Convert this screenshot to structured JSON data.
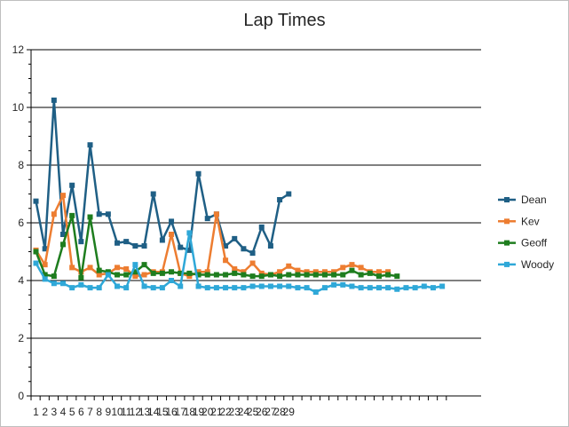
{
  "chart_data": {
    "type": "line",
    "title": "Lap Times",
    "xlabel": "",
    "ylabel": "",
    "ylim": [
      0,
      12
    ],
    "yticks": [
      0,
      2,
      4,
      6,
      8,
      10,
      12
    ],
    "grid": "horizontal",
    "legend_position": "right",
    "x_tick_labels": [
      "1",
      "2",
      "3",
      "4",
      "5",
      "6",
      "7",
      "8",
      "9",
      "10",
      "11",
      "12",
      "13",
      "14",
      "15",
      "16",
      "17",
      "18",
      "19",
      "20",
      "21",
      "22",
      "23",
      "24",
      "25",
      "26",
      "27",
      "28",
      "29"
    ],
    "series": [
      {
        "name": "Dean",
        "color": "#1f5f85",
        "values": [
          6.75,
          5.1,
          10.25,
          5.6,
          7.3,
          5.35,
          8.7,
          6.3,
          6.3,
          5.3,
          5.35,
          5.2,
          5.2,
          7.0,
          5.4,
          6.05,
          5.15,
          5.05,
          7.7,
          6.15,
          6.3,
          5.2,
          5.45,
          5.1,
          4.95,
          5.85,
          5.2,
          6.8,
          7.0
        ]
      },
      {
        "name": "Kev",
        "color": "#ed7d31",
        "values": [
          5.05,
          4.55,
          6.3,
          6.95,
          4.45,
          4.3,
          4.45,
          4.2,
          4.25,
          4.45,
          4.4,
          4.15,
          4.2,
          4.3,
          4.3,
          5.6,
          4.25,
          4.15,
          4.3,
          4.3,
          6.3,
          4.7,
          4.4,
          4.3,
          4.6,
          4.25,
          4.2,
          4.3,
          4.5,
          4.35,
          4.3,
          4.3,
          4.3,
          4.3,
          4.45,
          4.55,
          4.45,
          4.3,
          4.3,
          4.3
        ]
      },
      {
        "name": "Geoff",
        "color": "#1e7d1e",
        "values": [
          5.0,
          4.2,
          4.15,
          5.25,
          6.25,
          4.1,
          6.2,
          4.35,
          4.3,
          4.2,
          4.2,
          4.3,
          4.55,
          4.25,
          4.25,
          4.3,
          4.25,
          4.25,
          4.2,
          4.2,
          4.2,
          4.2,
          4.25,
          4.2,
          4.15,
          4.15,
          4.2,
          4.15,
          4.2,
          4.2,
          4.2,
          4.2,
          4.2,
          4.2,
          4.2,
          4.35,
          4.2,
          4.25,
          4.15,
          4.2,
          4.15
        ]
      },
      {
        "name": "Woody",
        "color": "#2fa8d8",
        "values": [
          4.6,
          4.05,
          3.9,
          3.9,
          3.75,
          3.85,
          3.75,
          3.75,
          4.2,
          3.8,
          3.75,
          4.55,
          3.8,
          3.75,
          3.75,
          4.0,
          3.8,
          5.65,
          3.8,
          3.75,
          3.75,
          3.75,
          3.75,
          3.75,
          3.8,
          3.8,
          3.8,
          3.8,
          3.8,
          3.75,
          3.75,
          3.6,
          3.75,
          3.85,
          3.85,
          3.8,
          3.75,
          3.75,
          3.75,
          3.75,
          3.7,
          3.75,
          3.75,
          3.8,
          3.75,
          3.8
        ]
      }
    ]
  }
}
